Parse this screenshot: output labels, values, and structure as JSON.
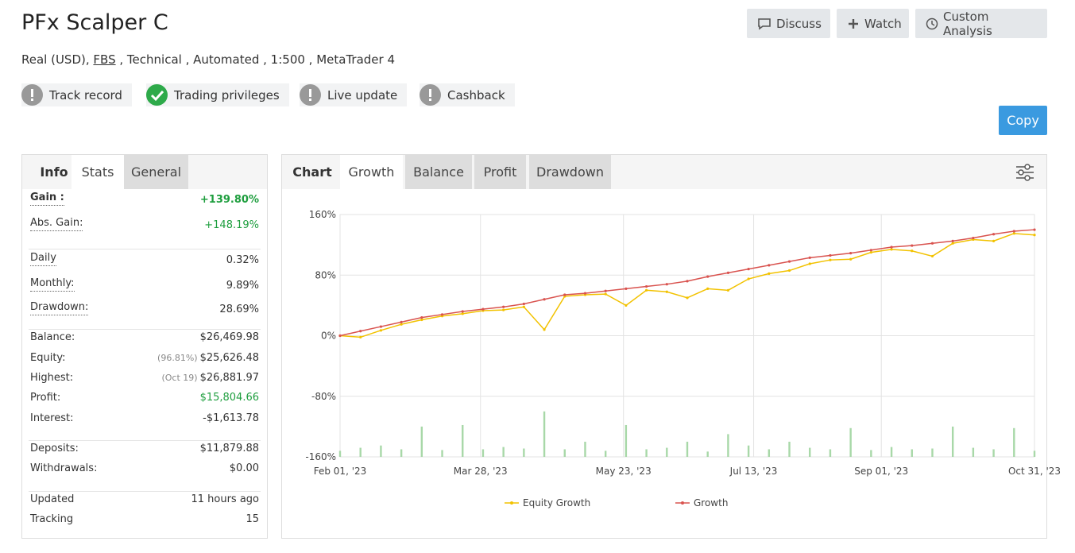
{
  "header": {
    "title": "PFx Scalper C",
    "subtitle": {
      "before": "Real (USD),",
      "broker": "FBS",
      "after": ", Technical , Automated , 1:500 , MetaTrader 4"
    },
    "buttons": [
      "Discuss",
      "Watch",
      "Custom Analysis"
    ],
    "badges": [
      "Track record",
      "Trading privileges",
      "Live update",
      "Cashback"
    ],
    "copy": "Copy"
  },
  "stats_panel": {
    "tabs": [
      "Info",
      "Stats",
      "General"
    ],
    "groups": [
      [
        {
          "label": "Gain :",
          "value": "+139.80%"
        },
        {
          "label": "Abs. Gain:",
          "value": "+148.19%"
        }
      ],
      [
        {
          "label": "Daily",
          "value": "0.32%"
        },
        {
          "label": "Monthly:",
          "value": "9.89%"
        },
        {
          "label": "Drawdown:",
          "value": "28.69%"
        }
      ],
      [
        {
          "label": "Balance:",
          "value": "$26,469.98"
        },
        {
          "label": "Equity:",
          "note": "(96.81%)",
          "value": "$25,626.48"
        },
        {
          "label": "Highest:",
          "note": "(Oct 19)",
          "value": "$26,881.97"
        },
        {
          "label": "Profit:",
          "value": "$15,804.66"
        },
        {
          "label": "Interest:",
          "value": "-$1,613.78"
        }
      ],
      [
        {
          "label": "Deposits:",
          "value": "$11,879.88"
        },
        {
          "label": "Withdrawals:",
          "value": "$0.00"
        }
      ],
      [
        {
          "label": "Updated",
          "value": "11 hours ago"
        },
        {
          "label": "Tracking",
          "value": "15"
        }
      ]
    ]
  },
  "chart_panel": {
    "tabs": [
      "Chart",
      "Growth",
      "Balance",
      "Profit",
      "Drawdown"
    ]
  },
  "chart_data": {
    "type": "line",
    "x": [
      0,
      8,
      16,
      24,
      32,
      40,
      48,
      56,
      64,
      72,
      80,
      88,
      96,
      104,
      112,
      120,
      128,
      136,
      144,
      152,
      160,
      168,
      176,
      184,
      192,
      200,
      208,
      216,
      224,
      232,
      240,
      248,
      256,
      264,
      272
    ],
    "xlim": [
      0,
      272
    ],
    "xticks": [
      {
        "value": 0,
        "label": "Feb 01, '23"
      },
      {
        "value": 55,
        "label": "Mar 28, '23"
      },
      {
        "value": 111,
        "label": "May 23, '23"
      },
      {
        "value": 162,
        "label": "Jul 13, '23"
      },
      {
        "value": 212,
        "label": "Sep 01, '23"
      },
      {
        "value": 272,
        "label": "Oct 31, '23"
      }
    ],
    "ylim": [
      -160,
      160
    ],
    "yticks": [
      {
        "value": -160,
        "label": "-160%"
      },
      {
        "value": -80,
        "label": "-80%"
      },
      {
        "value": 0,
        "label": "0%"
      },
      {
        "value": 80,
        "label": "80%"
      },
      {
        "value": 160,
        "label": "160%"
      }
    ],
    "grid": true,
    "series": [
      {
        "name": "Equity Growth",
        "color": "#f2c200",
        "values": [
          0,
          -2,
          7,
          15,
          21,
          26,
          29,
          33,
          34,
          38,
          8,
          52,
          54,
          55,
          40,
          60,
          58,
          50,
          62,
          60,
          75,
          82,
          86,
          95,
          100,
          101,
          110,
          114,
          112,
          105,
          122,
          127,
          125,
          135,
          133
        ]
      },
      {
        "name": "Growth",
        "color": "#d9534f",
        "values": [
          0,
          6,
          12,
          18,
          24,
          28,
          32,
          35,
          38,
          42,
          48,
          54,
          56,
          59,
          62,
          65,
          68,
          72,
          78,
          83,
          88,
          93,
          98,
          103,
          106,
          109,
          113,
          117,
          119,
          122,
          125,
          129,
          134,
          138,
          140
        ]
      }
    ],
    "bar_values": [
      -152,
      -148,
      -145,
      -150,
      -120,
      -151,
      -118,
      -150,
      -147,
      -149,
      -100,
      -150,
      -140,
      -152,
      -118,
      -150,
      -148,
      -140,
      -153,
      -130,
      -145,
      -150,
      -140,
      -148,
      -150,
      -122,
      -151,
      -147,
      -150,
      -149,
      -120,
      -148,
      -150,
      -122,
      -152
    ],
    "bar_color": "#a8d8a8",
    "legend": "bottom"
  }
}
